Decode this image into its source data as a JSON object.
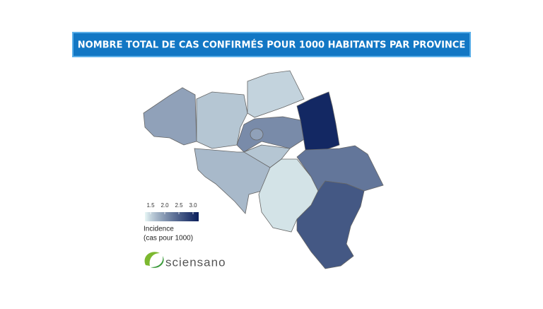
{
  "title": "NOMBRE TOTAL DE CAS CONFIRMÉS POUR 1000 HABITANTS PAR PROVINCE",
  "map": {
    "regions": [
      1.9,
      1.6,
      1.5,
      2.1,
      1.9,
      3.1,
      1.7,
      1.6,
      1.4,
      2.3,
      2.6
    ]
  },
  "legend": {
    "ticks": [
      1.5,
      {
        "value": 2,
        "label": "2.0"
      },
      2.5,
      {
        "value": 3,
        "label": "3.0"
      }
    ],
    "lim": [
      1.3,
      3.2
    ],
    "colors": [
      "#e8f7f6",
      "#0a1f5c"
    ],
    "title": "Incidence",
    "subtitle": "(cas pour 1000)"
  },
  "logo": "sciensano"
}
